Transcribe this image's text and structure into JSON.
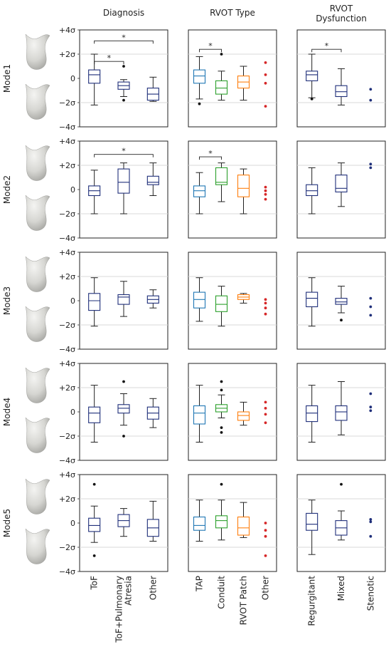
{
  "chart_data": {
    "type": "boxplot",
    "y_axis": {
      "ticks": [
        4,
        2,
        0,
        -2,
        -4
      ],
      "tick_labels": [
        "+4σ",
        "+2σ",
        "0",
        "−2σ",
        "−4σ"
      ],
      "ylim": [
        -4,
        4
      ],
      "grid": "horizontal at ±2σ"
    },
    "colors": {
      "navy": "#1f2f7a",
      "blue": "#1f77b4",
      "green": "#2ca02c",
      "orange": "#ff7f0e",
      "red": "#d62728"
    },
    "columns": [
      {
        "title_lines": [
          "Diagnosis"
        ],
        "categories": [
          "ToF",
          "ToF+Pulmonary Atresia",
          "Other"
        ],
        "label_lines": [
          [
            "ToF"
          ],
          [
            "ToF+Pulmonary",
            "Atresia"
          ],
          [
            "Other"
          ]
        ],
        "category_colors": [
          "navy",
          "navy",
          "navy"
        ]
      },
      {
        "title_lines": [
          "RVOT Type"
        ],
        "categories": [
          "TAP",
          "Conduit",
          "RVOT Patch",
          "Other"
        ],
        "label_lines": [
          [
            "TAP"
          ],
          [
            "Conduit"
          ],
          [
            "RVOT Patch"
          ],
          [
            "Other"
          ]
        ],
        "category_colors": [
          "blue",
          "green",
          "orange",
          "red"
        ]
      },
      {
        "title_lines": [
          "RVOT",
          "Dysfunction"
        ],
        "categories": [
          "Regurgitant",
          "Mixed",
          "Stenotic"
        ],
        "label_lines": [
          [
            "Regurgitant"
          ],
          [
            "Mixed"
          ],
          [
            "Stenotic"
          ]
        ],
        "category_colors": [
          "navy",
          "navy",
          "navy"
        ]
      }
    ],
    "rows": [
      {
        "mode": "Mode1",
        "panels": [
          {
            "boxes": [
              {
                "q1": -0.4,
                "median": 0.3,
                "q3": 0.7,
                "whisker_low": -2.2,
                "whisker_high": 2.0,
                "outliers": []
              },
              {
                "q1": -0.9,
                "median": -0.6,
                "q3": -0.3,
                "whisker_low": -1.5,
                "whisker_high": -0.1,
                "outliers": [
                  1.0,
                  -1.8
                ]
              },
              {
                "q1": -1.8,
                "median": -1.3,
                "q3": -0.8,
                "whisker_low": -1.9,
                "whisker_high": 0.1,
                "outliers": []
              }
            ],
            "significance": [
              {
                "from": 0,
                "to": 1,
                "level": 1.4,
                "label": "*"
              },
              {
                "from": 0,
                "to": 2,
                "level": 3.1,
                "label": "*"
              }
            ]
          },
          {
            "boxes": [
              {
                "q1": -0.4,
                "median": 0.2,
                "q3": 0.7,
                "whisker_low": -1.7,
                "whisker_high": 1.8,
                "outliers": [
                  -2.1
                ]
              },
              {
                "q1": -1.3,
                "median": -0.8,
                "q3": -0.2,
                "whisker_low": -1.8,
                "whisker_high": 0.6,
                "outliers": [
                  2.0
                ]
              },
              {
                "q1": -0.8,
                "median": -0.3,
                "q3": 0.2,
                "whisker_low": -1.8,
                "whisker_high": 1.0,
                "outliers": []
              },
              {
                "q1": null,
                "median": null,
                "q3": null,
                "whisker_low": null,
                "whisker_high": null,
                "outliers": [
                  1.3,
                  0.3,
                  -0.4,
                  -2.3
                ]
              }
            ],
            "significance": [
              {
                "from": 0,
                "to": 1,
                "level": 2.4,
                "label": "*"
              }
            ]
          },
          {
            "boxes": [
              {
                "q1": -0.2,
                "median": 0.3,
                "q3": 0.6,
                "whisker_low": -1.6,
                "whisker_high": 2.0,
                "outliers": [
                  -1.7
                ]
              },
              {
                "q1": -1.5,
                "median": -1.1,
                "q3": -0.6,
                "whisker_low": -2.2,
                "whisker_high": 0.8,
                "outliers": []
              },
              {
                "q1": null,
                "median": null,
                "q3": null,
                "whisker_low": null,
                "whisker_high": null,
                "outliers": [
                  -0.9,
                  -1.8
                ]
              }
            ],
            "significance": [
              {
                "from": 0,
                "to": 1,
                "level": 2.4,
                "label": "*"
              }
            ]
          }
        ]
      },
      {
        "mode": "Mode2",
        "panels": [
          {
            "boxes": [
              {
                "q1": -0.5,
                "median": -0.1,
                "q3": 0.3,
                "whisker_low": -2.0,
                "whisker_high": 1.6,
                "outliers": []
              },
              {
                "q1": -0.3,
                "median": 0.6,
                "q3": 1.7,
                "whisker_low": -2.0,
                "whisker_high": 2.2,
                "outliers": []
              },
              {
                "q1": 0.4,
                "median": 0.6,
                "q3": 1.1,
                "whisker_low": -0.5,
                "whisker_high": 2.2,
                "outliers": []
              }
            ],
            "significance": [
              {
                "from": 0,
                "to": 2,
                "level": 2.9,
                "label": "*"
              }
            ]
          },
          {
            "boxes": [
              {
                "q1": -0.6,
                "median": -0.1,
                "q3": 0.3,
                "whisker_low": -2.0,
                "whisker_high": 1.4,
                "outliers": []
              },
              {
                "q1": 0.4,
                "median": 0.6,
                "q3": 1.8,
                "whisker_low": -1.0,
                "whisker_high": 2.2,
                "outliers": []
              },
              {
                "q1": -0.6,
                "median": 0.1,
                "q3": 1.2,
                "whisker_low": -2.0,
                "whisker_high": 1.7,
                "outliers": []
              },
              {
                "q1": null,
                "median": null,
                "q3": null,
                "whisker_low": null,
                "whisker_high": null,
                "outliers": [
                  0.2,
                  -0.1,
                  -0.4,
                  -0.8
                ]
              }
            ],
            "significance": [
              {
                "from": 0,
                "to": 1,
                "level": 2.7,
                "label": "*"
              }
            ]
          },
          {
            "boxes": [
              {
                "q1": -0.5,
                "median": -0.1,
                "q3": 0.4,
                "whisker_low": -2.0,
                "whisker_high": 1.8,
                "outliers": []
              },
              {
                "q1": -0.2,
                "median": 0.1,
                "q3": 1.2,
                "whisker_low": -1.4,
                "whisker_high": 2.2,
                "outliers": []
              },
              {
                "q1": null,
                "median": null,
                "q3": null,
                "whisker_low": null,
                "whisker_high": null,
                "outliers": [
                  2.1,
                  1.8
                ]
              }
            ],
            "significance": []
          }
        ]
      },
      {
        "mode": "Mode3",
        "panels": [
          {
            "boxes": [
              {
                "q1": -0.8,
                "median": 0.0,
                "q3": 0.6,
                "whisker_low": -2.1,
                "whisker_high": 1.9,
                "outliers": []
              },
              {
                "q1": -0.3,
                "median": 0.3,
                "q3": 0.5,
                "whisker_low": -1.3,
                "whisker_high": 1.6,
                "outliers": []
              },
              {
                "q1": -0.2,
                "median": 0.1,
                "q3": 0.4,
                "whisker_low": -0.6,
                "whisker_high": 0.9,
                "outliers": []
              }
            ],
            "significance": []
          },
          {
            "boxes": [
              {
                "q1": -0.6,
                "median": 0.1,
                "q3": 0.7,
                "whisker_low": -1.7,
                "whisker_high": 1.9,
                "outliers": []
              },
              {
                "q1": -0.9,
                "median": -0.3,
                "q3": 0.4,
                "whisker_low": -2.1,
                "whisker_high": 1.2,
                "outliers": []
              },
              {
                "q1": 0.1,
                "median": 0.3,
                "q3": 0.5,
                "whisker_low": -0.2,
                "whisker_high": 0.6,
                "outliers": []
              },
              {
                "q1": null,
                "median": null,
                "q3": null,
                "whisker_low": null,
                "whisker_high": null,
                "outliers": [
                  0.1,
                  -0.2,
                  -0.6,
                  -1.1
                ]
              }
            ],
            "significance": []
          },
          {
            "boxes": [
              {
                "q1": -0.5,
                "median": 0.2,
                "q3": 0.7,
                "whisker_low": -2.1,
                "whisker_high": 1.9,
                "outliers": []
              },
              {
                "q1": -0.3,
                "median": -0.1,
                "q3": 0.2,
                "whisker_low": -1.0,
                "whisker_high": 1.2,
                "outliers": [
                  -1.6
                ]
              },
              {
                "q1": null,
                "median": null,
                "q3": null,
                "whisker_low": null,
                "whisker_high": null,
                "outliers": [
                  0.2,
                  -0.5,
                  -1.2
                ]
              }
            ],
            "significance": []
          }
        ]
      },
      {
        "mode": "Mode4",
        "panels": [
          {
            "boxes": [
              {
                "q1": -0.9,
                "median": -0.1,
                "q3": 0.4,
                "whisker_low": -2.5,
                "whisker_high": 2.2,
                "outliers": []
              },
              {
                "q1": -0.1,
                "median": 0.3,
                "q3": 0.6,
                "whisker_low": -1.1,
                "whisker_high": 1.5,
                "outliers": [
                  2.5,
                  -2.0
                ]
              },
              {
                "q1": -0.6,
                "median": -0.1,
                "q3": 0.4,
                "whisker_low": -1.3,
                "whisker_high": 1.1,
                "outliers": []
              }
            ],
            "significance": []
          },
          {
            "boxes": [
              {
                "q1": -1.0,
                "median": -0.1,
                "q3": 0.5,
                "whisker_low": -2.5,
                "whisker_high": 2.2,
                "outliers": []
              },
              {
                "q1": 0.0,
                "median": 0.3,
                "q3": 0.6,
                "whisker_low": -0.5,
                "whisker_high": 1.4,
                "outliers": [
                  2.5,
                  1.8,
                  -1.3,
                  -1.7
                ]
              },
              {
                "q1": -0.7,
                "median": -0.3,
                "q3": 0.0,
                "whisker_low": -1.1,
                "whisker_high": 0.8,
                "outliers": []
              },
              {
                "q1": null,
                "median": null,
                "q3": null,
                "whisker_low": null,
                "whisker_high": null,
                "outliers": [
                  0.8,
                  0.3,
                  -0.2,
                  -0.9
                ]
              }
            ],
            "significance": []
          },
          {
            "boxes": [
              {
                "q1": -0.8,
                "median": -0.1,
                "q3": 0.5,
                "whisker_low": -2.5,
                "whisker_high": 2.2,
                "outliers": []
              },
              {
                "q1": -0.7,
                "median": 0.0,
                "q3": 0.5,
                "whisker_low": -1.9,
                "whisker_high": 2.5,
                "outliers": []
              },
              {
                "q1": null,
                "median": null,
                "q3": null,
                "whisker_low": null,
                "whisker_high": null,
                "outliers": [
                  1.5,
                  0.4,
                  0.1
                ]
              }
            ],
            "significance": []
          }
        ]
      },
      {
        "mode": "Mode5",
        "panels": [
          {
            "boxes": [
              {
                "q1": -0.7,
                "median": -0.2,
                "q3": 0.4,
                "whisker_low": -1.6,
                "whisker_high": 1.4,
                "outliers": [
                  3.2,
                  -2.7
                ]
              },
              {
                "q1": -0.3,
                "median": 0.2,
                "q3": 0.7,
                "whisker_low": -1.1,
                "whisker_high": 1.2,
                "outliers": []
              },
              {
                "q1": -1.1,
                "median": -0.4,
                "q3": 0.3,
                "whisker_low": -1.5,
                "whisker_high": 1.8,
                "outliers": []
              }
            ],
            "significance": []
          },
          {
            "boxes": [
              {
                "q1": -0.6,
                "median": -0.2,
                "q3": 0.5,
                "whisker_low": -1.5,
                "whisker_high": 1.9,
                "outliers": []
              },
              {
                "q1": -0.4,
                "median": 0.2,
                "q3": 0.6,
                "whisker_low": -1.4,
                "whisker_high": 1.9,
                "outliers": [
                  3.2
                ]
              },
              {
                "q1": -1.0,
                "median": -0.4,
                "q3": 0.5,
                "whisker_low": -1.2,
                "whisker_high": 1.7,
                "outliers": []
              },
              {
                "q1": null,
                "median": null,
                "q3": null,
                "whisker_low": null,
                "whisker_high": null,
                "outliers": [
                  0.0,
                  -0.6,
                  -1.1,
                  -2.7
                ]
              }
            ],
            "significance": []
          },
          {
            "boxes": [
              {
                "q1": -0.6,
                "median": -0.1,
                "q3": 0.8,
                "whisker_low": -2.6,
                "whisker_high": 1.9,
                "outliers": []
              },
              {
                "q1": -1.0,
                "median": -0.4,
                "q3": 0.2,
                "whisker_low": -1.4,
                "whisker_high": 1.0,
                "outliers": [
                  3.2
                ]
              },
              {
                "q1": null,
                "median": null,
                "q3": null,
                "whisker_low": null,
                "whisker_high": null,
                "outliers": [
                  0.3,
                  0.1,
                  -1.1
                ]
              }
            ],
            "significance": []
          }
        ]
      }
    ],
    "thumbnails": "two grey 3D RVOT shape renderings per mode row (picture, no text)"
  }
}
